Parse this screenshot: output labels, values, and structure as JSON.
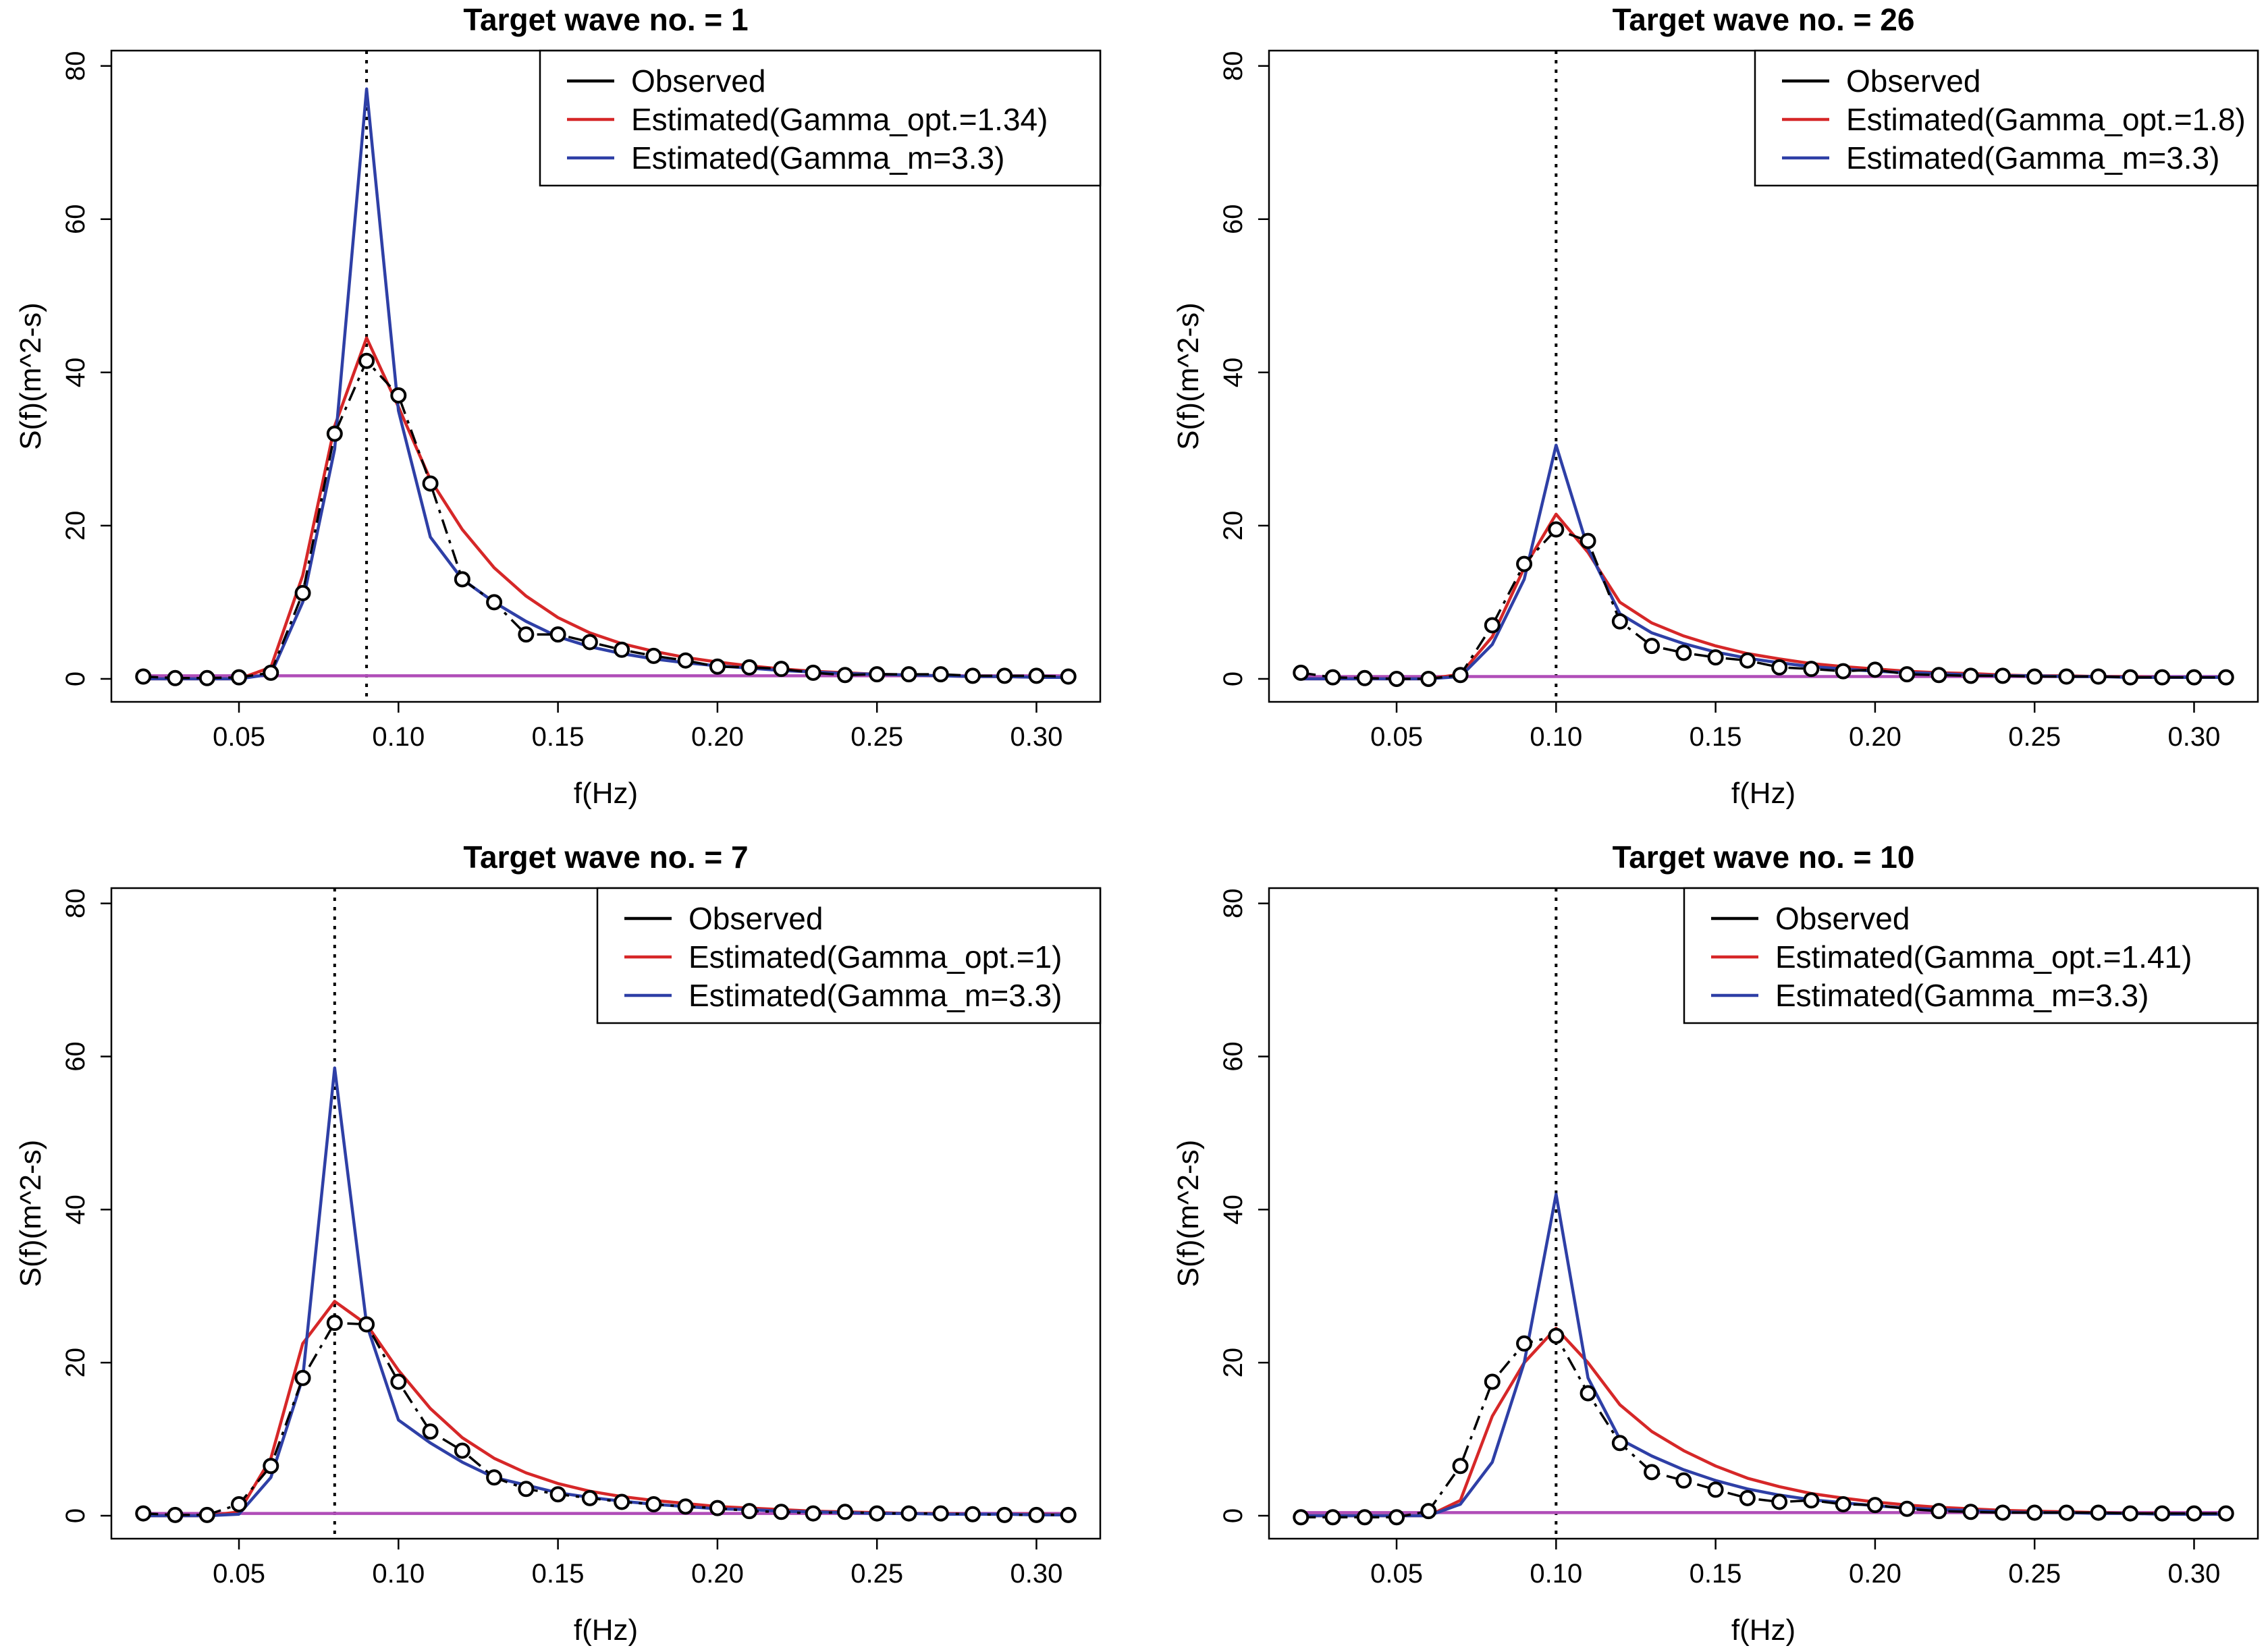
{
  "chart_data": [
    {
      "type": "line",
      "title": "Target wave no. = 1",
      "xlabel": "f(Hz)",
      "ylabel": "S(f)(m^2-s)",
      "xlim": [
        0.01,
        0.32
      ],
      "ylim": [
        -3,
        82
      ],
      "xticks": [
        0.05,
        0.1,
        0.15,
        0.2,
        0.25,
        0.3
      ],
      "xtick_labels": [
        "0.05",
        "0.10",
        "0.15",
        "0.20",
        "0.25",
        "0.30"
      ],
      "yticks": [
        0,
        20,
        40,
        60,
        80
      ],
      "ytick_labels": [
        "0",
        "20",
        "40",
        "60",
        "80"
      ],
      "peak_line_x": 0.09,
      "legend_position": "top-right",
      "x": [
        0.02,
        0.03,
        0.04,
        0.05,
        0.06,
        0.07,
        0.08,
        0.09,
        0.1,
        0.11,
        0.12,
        0.13,
        0.14,
        0.15,
        0.16,
        0.17,
        0.18,
        0.19,
        0.2,
        0.21,
        0.22,
        0.23,
        0.24,
        0.25,
        0.26,
        0.27,
        0.28,
        0.29,
        0.3,
        0.31
      ],
      "series": [
        {
          "name": "Observed",
          "color": "#000000",
          "markers": true,
          "values": [
            0.3,
            0.1,
            0.1,
            0.2,
            0.8,
            11.2,
            32.0,
            41.5,
            37.0,
            25.5,
            13.0,
            10.0,
            5.8,
            5.8,
            4.8,
            3.8,
            3.0,
            2.4,
            1.6,
            1.5,
            1.3,
            0.8,
            0.5,
            0.6,
            0.6,
            0.6,
            0.4,
            0.4,
            0.4,
            0.3
          ]
        },
        {
          "name": "Estimated(Gamma_opt.=1.34)",
          "color": "#d62728",
          "markers": false,
          "values": [
            0.0,
            0.0,
            0.0,
            0.0,
            1.5,
            13.5,
            33.0,
            44.5,
            35.5,
            26.0,
            19.5,
            14.5,
            10.8,
            8.0,
            6.0,
            4.6,
            3.6,
            2.8,
            2.2,
            1.7,
            1.3,
            1.0,
            0.8,
            0.6,
            0.5,
            0.4,
            0.3,
            0.3,
            0.2,
            0.2
          ]
        },
        {
          "name": "Estimated(Gamma_m=3.3)",
          "color": "#2e3fa6",
          "markers": false,
          "values": [
            0.0,
            0.0,
            0.0,
            0.0,
            0.6,
            10.0,
            30.0,
            77.0,
            35.0,
            18.5,
            13.0,
            10.0,
            7.5,
            5.5,
            4.2,
            3.3,
            2.6,
            2.1,
            1.7,
            1.4,
            1.1,
            0.9,
            0.7,
            0.6,
            0.5,
            0.4,
            0.3,
            0.3,
            0.2,
            0.2
          ]
        },
        {
          "name": "Baseline",
          "color": "#b04db8",
          "markers": false,
          "in_legend": false,
          "values": [
            0.4,
            0.4,
            0.4,
            0.4,
            0.4,
            0.4,
            0.4,
            0.4,
            0.4,
            0.4,
            0.4,
            0.4,
            0.4,
            0.4,
            0.4,
            0.4,
            0.4,
            0.4,
            0.4,
            0.4,
            0.4,
            0.4,
            0.4,
            0.4,
            0.4,
            0.4,
            0.4,
            0.4,
            0.4,
            0.4
          ]
        }
      ]
    },
    {
      "type": "line",
      "title": "Target wave no. = 26",
      "xlabel": "f(Hz)",
      "ylabel": "S(f)(m^2-s)",
      "xlim": [
        0.01,
        0.32
      ],
      "ylim": [
        -3,
        82
      ],
      "xticks": [
        0.05,
        0.1,
        0.15,
        0.2,
        0.25,
        0.3
      ],
      "xtick_labels": [
        "0.05",
        "0.10",
        "0.15",
        "0.20",
        "0.25",
        "0.30"
      ],
      "yticks": [
        0,
        20,
        40,
        60,
        80
      ],
      "ytick_labels": [
        "0",
        "20",
        "40",
        "60",
        "80"
      ],
      "peak_line_x": 0.1,
      "legend_position": "top-right",
      "x": [
        0.02,
        0.03,
        0.04,
        0.05,
        0.06,
        0.07,
        0.08,
        0.09,
        0.1,
        0.11,
        0.12,
        0.13,
        0.14,
        0.15,
        0.16,
        0.17,
        0.18,
        0.19,
        0.2,
        0.21,
        0.22,
        0.23,
        0.24,
        0.25,
        0.26,
        0.27,
        0.28,
        0.29,
        0.3,
        0.31
      ],
      "series": [
        {
          "name": "Observed",
          "color": "#000000",
          "markers": true,
          "values": [
            0.8,
            0.2,
            0.1,
            0.0,
            0.0,
            0.5,
            7.0,
            15.0,
            19.5,
            18.0,
            7.5,
            4.3,
            3.4,
            2.8,
            2.4,
            1.5,
            1.3,
            1.0,
            1.2,
            0.6,
            0.5,
            0.4,
            0.4,
            0.3,
            0.3,
            0.3,
            0.2,
            0.2,
            0.2,
            0.2
          ]
        },
        {
          "name": "Estimated(Gamma_opt.=1.8)",
          "color": "#d62728",
          "markers": false,
          "values": [
            0.0,
            0.0,
            0.0,
            0.0,
            0.0,
            0.6,
            5.5,
            14.5,
            21.5,
            16.5,
            10.0,
            7.3,
            5.6,
            4.3,
            3.3,
            2.6,
            2.0,
            1.6,
            1.3,
            1.0,
            0.8,
            0.7,
            0.5,
            0.4,
            0.4,
            0.3,
            0.3,
            0.2,
            0.2,
            0.2
          ]
        },
        {
          "name": "Estimated(Gamma_m=3.3)",
          "color": "#2e3fa6",
          "markers": false,
          "values": [
            0.0,
            0.0,
            0.0,
            0.0,
            0.0,
            0.3,
            4.5,
            13.0,
            30.5,
            17.0,
            8.5,
            6.0,
            4.6,
            3.5,
            2.7,
            2.1,
            1.6,
            1.3,
            1.0,
            0.8,
            0.7,
            0.5,
            0.4,
            0.4,
            0.3,
            0.3,
            0.2,
            0.2,
            0.2,
            0.2
          ]
        },
        {
          "name": "Baseline",
          "color": "#b04db8",
          "markers": false,
          "in_legend": false,
          "values": [
            0.3,
            0.3,
            0.3,
            0.3,
            0.3,
            0.3,
            0.3,
            0.3,
            0.3,
            0.3,
            0.3,
            0.3,
            0.3,
            0.3,
            0.3,
            0.3,
            0.3,
            0.3,
            0.3,
            0.3,
            0.3,
            0.3,
            0.3,
            0.3,
            0.3,
            0.3,
            0.3,
            0.3,
            0.3,
            0.3
          ]
        }
      ]
    },
    {
      "type": "line",
      "title": "Target wave no. = 7",
      "xlabel": "f(Hz)",
      "ylabel": "S(f)(m^2-s)",
      "xlim": [
        0.01,
        0.32
      ],
      "ylim": [
        -3,
        82
      ],
      "xticks": [
        0.05,
        0.1,
        0.15,
        0.2,
        0.25,
        0.3
      ],
      "xtick_labels": [
        "0.05",
        "0.10",
        "0.15",
        "0.20",
        "0.25",
        "0.30"
      ],
      "yticks": [
        0,
        20,
        40,
        60,
        80
      ],
      "ytick_labels": [
        "0",
        "20",
        "40",
        "60",
        "80"
      ],
      "peak_line_x": 0.08,
      "legend_position": "top-right",
      "x": [
        0.02,
        0.03,
        0.04,
        0.05,
        0.06,
        0.07,
        0.08,
        0.09,
        0.1,
        0.11,
        0.12,
        0.13,
        0.14,
        0.15,
        0.16,
        0.17,
        0.18,
        0.19,
        0.2,
        0.21,
        0.22,
        0.23,
        0.24,
        0.25,
        0.26,
        0.27,
        0.28,
        0.29,
        0.3,
        0.31
      ],
      "series": [
        {
          "name": "Observed",
          "color": "#000000",
          "markers": true,
          "values": [
            0.3,
            0.1,
            0.1,
            1.5,
            6.5,
            18.0,
            25.2,
            25.0,
            17.5,
            11.0,
            8.5,
            5.0,
            3.5,
            2.8,
            2.3,
            1.8,
            1.5,
            1.2,
            1.0,
            0.6,
            0.5,
            0.3,
            0.5,
            0.3,
            0.3,
            0.3,
            0.2,
            0.1,
            0.1,
            0.1
          ]
        },
        {
          "name": "Estimated(Gamma_opt.=1)",
          "color": "#d62728",
          "markers": false,
          "values": [
            0.0,
            0.0,
            0.0,
            0.5,
            7.5,
            22.5,
            28.0,
            25.0,
            19.0,
            14.0,
            10.2,
            7.5,
            5.6,
            4.2,
            3.2,
            2.5,
            2.0,
            1.6,
            1.2,
            1.0,
            0.8,
            0.6,
            0.5,
            0.4,
            0.3,
            0.3,
            0.2,
            0.2,
            0.2,
            0.1
          ]
        },
        {
          "name": "Estimated(Gamma_m=3.3)",
          "color": "#2e3fa6",
          "markers": false,
          "values": [
            0.0,
            0.0,
            0.0,
            0.2,
            5.0,
            18.0,
            58.5,
            25.0,
            12.5,
            9.5,
            7.0,
            5.0,
            4.0,
            3.0,
            2.4,
            1.9,
            1.5,
            1.2,
            0.9,
            0.8,
            0.6,
            0.5,
            0.4,
            0.3,
            0.3,
            0.2,
            0.2,
            0.2,
            0.1,
            0.1
          ]
        },
        {
          "name": "Baseline",
          "color": "#b04db8",
          "markers": false,
          "in_legend": false,
          "values": [
            0.3,
            0.3,
            0.3,
            0.3,
            0.3,
            0.3,
            0.3,
            0.3,
            0.3,
            0.3,
            0.3,
            0.3,
            0.3,
            0.3,
            0.3,
            0.3,
            0.3,
            0.3,
            0.3,
            0.3,
            0.3,
            0.3,
            0.3,
            0.3,
            0.3,
            0.3,
            0.3,
            0.3,
            0.3,
            0.3
          ]
        }
      ]
    },
    {
      "type": "line",
      "title": "Target wave no. = 10",
      "xlabel": "f(Hz)",
      "ylabel": "S(f)(m^2-s)",
      "xlim": [
        0.01,
        0.32
      ],
      "ylim": [
        -3,
        82
      ],
      "xticks": [
        0.05,
        0.1,
        0.15,
        0.2,
        0.25,
        0.3
      ],
      "xtick_labels": [
        "0.05",
        "0.10",
        "0.15",
        "0.20",
        "0.25",
        "0.30"
      ],
      "yticks": [
        0,
        20,
        40,
        60,
        80
      ],
      "ytick_labels": [
        "0",
        "20",
        "40",
        "60",
        "80"
      ],
      "peak_line_x": 0.1,
      "legend_position": "top-right",
      "x": [
        0.02,
        0.03,
        0.04,
        0.05,
        0.06,
        0.07,
        0.08,
        0.09,
        0.1,
        0.11,
        0.12,
        0.13,
        0.14,
        0.15,
        0.16,
        0.17,
        0.18,
        0.19,
        0.2,
        0.21,
        0.22,
        0.23,
        0.24,
        0.25,
        0.26,
        0.27,
        0.28,
        0.29,
        0.3,
        0.31
      ],
      "series": [
        {
          "name": "Observed",
          "color": "#000000",
          "markers": true,
          "values": [
            -0.2,
            -0.2,
            -0.2,
            -0.2,
            0.6,
            6.5,
            17.5,
            22.5,
            23.5,
            16.0,
            9.5,
            5.7,
            4.6,
            3.4,
            2.3,
            1.8,
            2.0,
            1.5,
            1.4,
            0.9,
            0.6,
            0.5,
            0.4,
            0.4,
            0.4,
            0.4,
            0.3,
            0.3,
            0.3,
            0.3
          ]
        },
        {
          "name": "Estimated(Gamma_opt.=1.41)",
          "color": "#d62728",
          "markers": false,
          "values": [
            0.0,
            0.0,
            0.0,
            0.0,
            0.0,
            2.0,
            13.0,
            20.0,
            24.5,
            20.0,
            14.5,
            11.0,
            8.5,
            6.5,
            4.9,
            3.8,
            2.9,
            2.3,
            1.8,
            1.4,
            1.1,
            0.9,
            0.7,
            0.6,
            0.5,
            0.4,
            0.3,
            0.3,
            0.2,
            0.2
          ]
        },
        {
          "name": "Estimated(Gamma_m=3.3)",
          "color": "#2e3fa6",
          "markers": false,
          "values": [
            0.0,
            0.0,
            0.0,
            0.0,
            0.0,
            1.5,
            7.0,
            20.0,
            42.0,
            18.0,
            10.0,
            7.8,
            6.0,
            4.6,
            3.5,
            2.7,
            2.1,
            1.7,
            1.3,
            1.0,
            0.8,
            0.7,
            0.5,
            0.4,
            0.4,
            0.3,
            0.3,
            0.2,
            0.2,
            0.2
          ]
        },
        {
          "name": "Baseline",
          "color": "#b04db8",
          "markers": false,
          "in_legend": false,
          "values": [
            0.4,
            0.4,
            0.4,
            0.4,
            0.4,
            0.4,
            0.4,
            0.4,
            0.4,
            0.4,
            0.4,
            0.4,
            0.4,
            0.4,
            0.4,
            0.4,
            0.4,
            0.4,
            0.4,
            0.4,
            0.4,
            0.4,
            0.4,
            0.4,
            0.4,
            0.4,
            0.4,
            0.4,
            0.4,
            0.4
          ]
        }
      ]
    }
  ]
}
